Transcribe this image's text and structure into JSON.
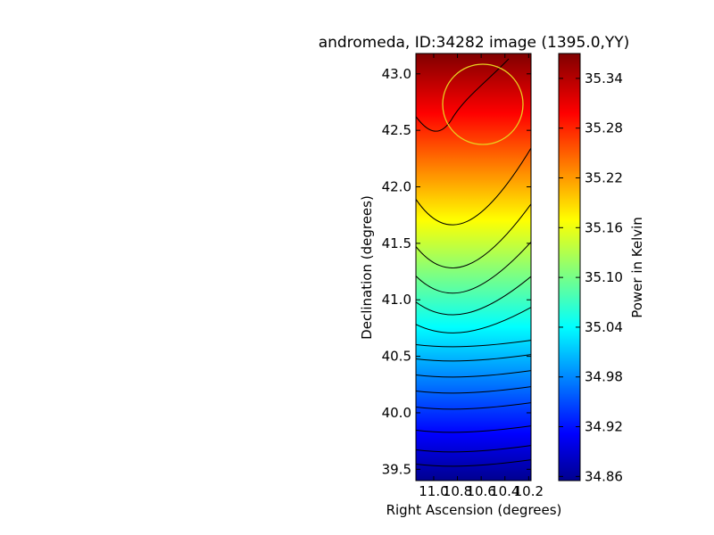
{
  "chart_data": {
    "type": "heatmap",
    "title": "andromeda, ID:34282 image (1395.0,YY)",
    "xlabel": "Right Ascension (degrees)",
    "ylabel": "Declination (degrees)",
    "x_ticks": [
      "11.0",
      "10.8",
      "10.6",
      "10.4",
      "10.2"
    ],
    "y_ticks": [
      "39.5",
      "40.0",
      "40.5",
      "41.0",
      "41.5",
      "42.0",
      "42.5",
      "43.0"
    ],
    "xlim": [
      11.15,
      10.18
    ],
    "ylim": [
      39.4,
      43.18
    ],
    "colorbar": {
      "label": "Power in Kelvin",
      "ticks": [
        "34.86",
        "34.92",
        "34.98",
        "35.04",
        "35.10",
        "35.16",
        "35.22",
        "35.28",
        "35.34"
      ],
      "range": [
        34.855,
        35.37
      ],
      "colormap": "jet"
    },
    "contour_levels": 14,
    "beam_circle": {
      "ra": 10.58,
      "dec": 42.73,
      "radius_deg": 0.37,
      "color": "#e8d020"
    },
    "grid": false
  }
}
